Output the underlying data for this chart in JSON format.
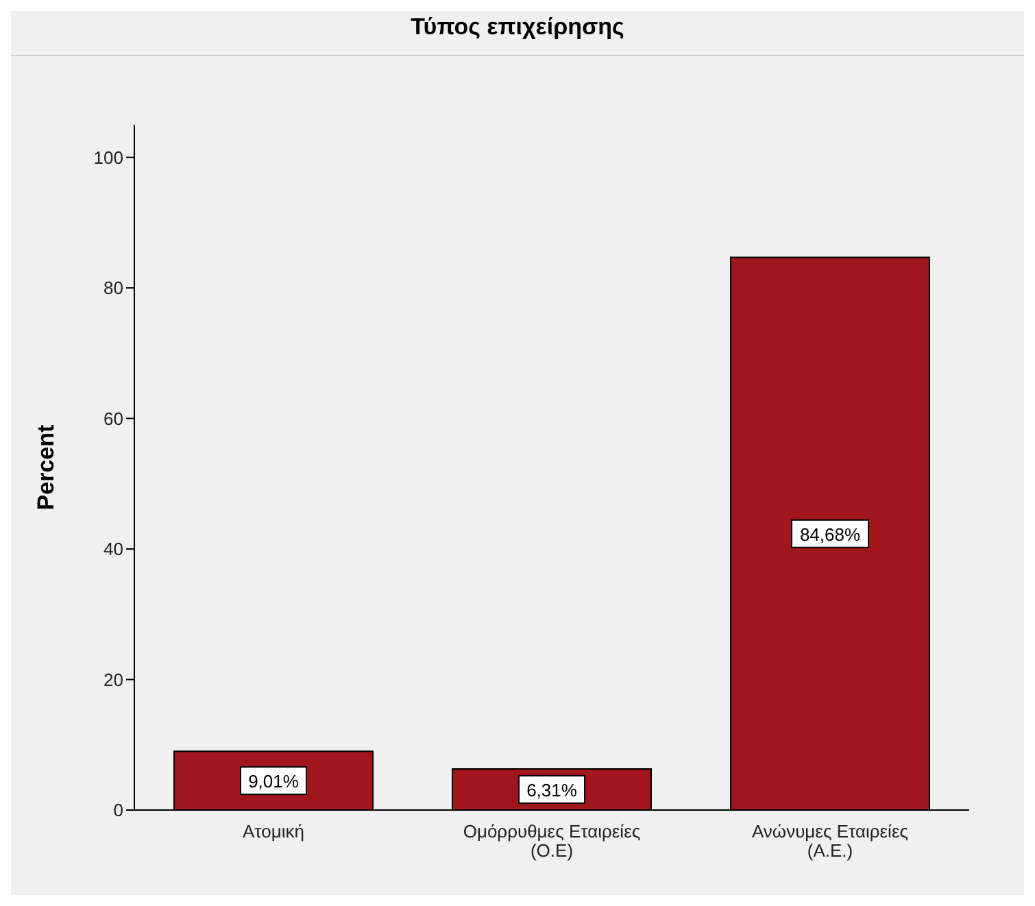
{
  "chart_data": {
    "type": "bar",
    "title": "Τύπος επιχείρησης",
    "ylabel": "Percent",
    "categories": [
      "Ατομική",
      "Ομόρρυθμες Εταιρείες (Ο.Ε)",
      "Ανώνυμες Εταιρείες (Α.Ε.)"
    ],
    "values": [
      9.01,
      6.31,
      84.68
    ],
    "value_labels": [
      "9,01%",
      "6,31%",
      "84,68%"
    ],
    "color": "#a0161c",
    "ylim": [
      0,
      105
    ],
    "yticks": [
      0,
      20,
      40,
      60,
      80,
      100
    ],
    "grid": false,
    "legend": false
  }
}
